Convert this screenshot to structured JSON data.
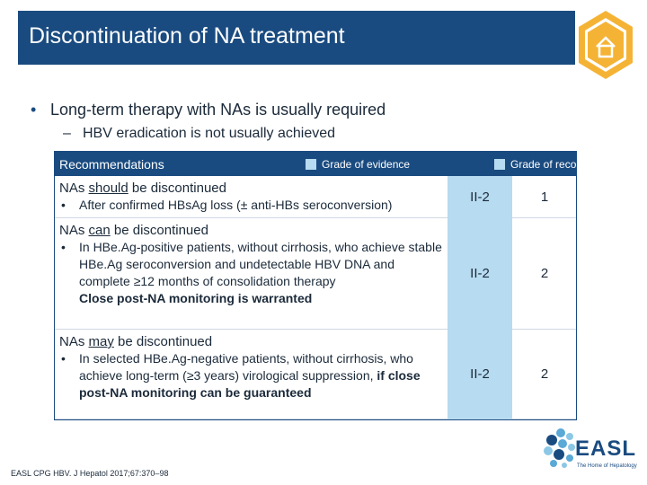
{
  "header": {
    "title": "Discontinuation of NA treatment",
    "home_icon": "home-icon"
  },
  "bullets": {
    "main": "Long-term therapy with NAs is usually required",
    "main_marker": "•",
    "sub": "HBV eradication is not usually achieved",
    "sub_marker": "–"
  },
  "table": {
    "header": {
      "left": "Recommendations",
      "legend_evidence": "Grade of evidence",
      "legend_recommendation": "Grade of recommendation"
    },
    "rows": [
      {
        "title_pre": "NAs ",
        "title_emph": "should",
        "title_post": " be discontinued",
        "items": [
          "After confirmed HBsAg loss (± anti-HBs seroconversion)"
        ],
        "evidence": "II-2",
        "recommendation": "1"
      },
      {
        "title_pre": "NAs ",
        "title_emph": "can",
        "title_post": " be discontinued",
        "items": [
          "In HBe.Ag-positive patients, without cirrhosis, who achieve stable HBe.Ag seroconversion and undetectable HBV DNA and complete ≥12 months of consolidation therapy"
        ],
        "note": "Close post-NA monitoring is warranted",
        "evidence": "II-2",
        "recommendation": "2"
      },
      {
        "title_pre": "NAs ",
        "title_emph": "may",
        "title_post": " be discontinued",
        "items_text": "In selected HBe.Ag-negative patients, without cirrhosis, who achieve long-term (≥3 years) virological suppression, ",
        "items_bold": "if close post-NA monitoring can be guaranteed",
        "evidence": "II-2",
        "recommendation": "2"
      }
    ]
  },
  "footer": {
    "citation": "EASL CPG HBV. J Hepatol 2017;67:370–98",
    "logo_text": "EASL",
    "logo_tagline": "The Home of Hepatology"
  },
  "colors": {
    "brand_blue": "#1a4b80",
    "evidence_fill": "#b7dbf0",
    "badge_orange": "#f5b335"
  }
}
